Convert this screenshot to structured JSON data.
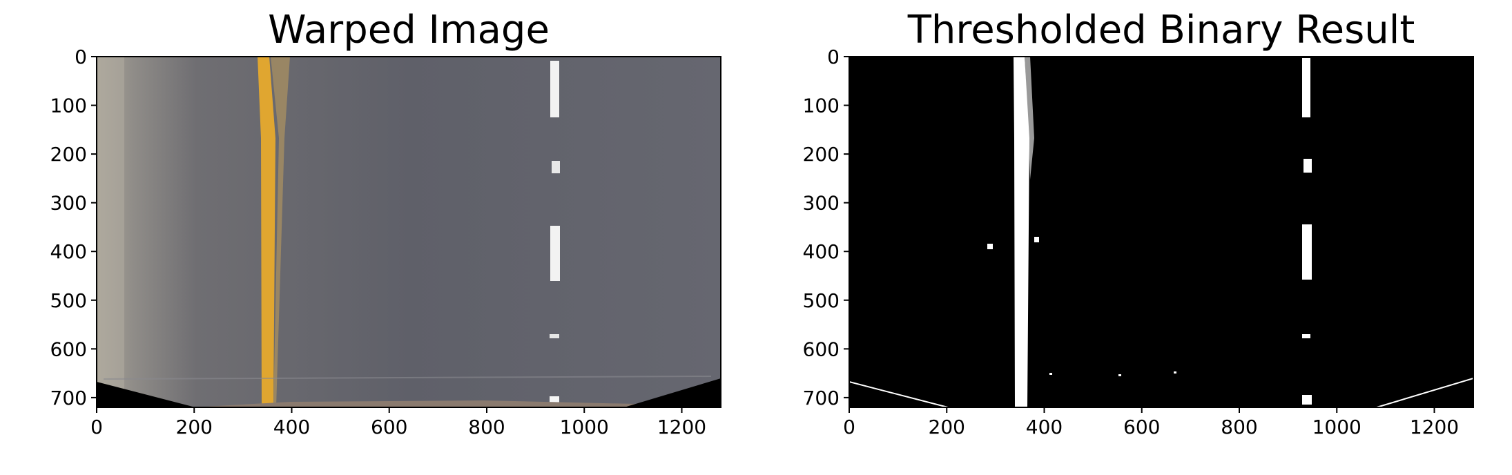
{
  "chart_data": [
    {
      "type": "image",
      "title": "Warped Image",
      "xlim": [
        0,
        1280
      ],
      "ylim": [
        720,
        0
      ],
      "xticks": [
        0,
        200,
        400,
        600,
        800,
        1000,
        1200
      ],
      "yticks": [
        0,
        100,
        200,
        300,
        400,
        500,
        600,
        700
      ],
      "colors": {
        "road": "#62626b",
        "yellow_lane": "#e0a630",
        "white_lane": "#f2f2f2",
        "dirt": "#8a7a6e",
        "left_shoulder": "#b3ada2",
        "fill": "#000000"
      }
    },
    {
      "type": "image",
      "title": "Thresholded Binary Result",
      "xlim": [
        0,
        1280
      ],
      "ylim": [
        720,
        0
      ],
      "xticks": [
        0,
        200,
        400,
        600,
        800,
        1000,
        1200
      ],
      "yticks": [
        0,
        100,
        200,
        300,
        400,
        500,
        600,
        700
      ],
      "colors": {
        "background": "#000000",
        "lane_pixels": "#ffffff"
      }
    }
  ]
}
